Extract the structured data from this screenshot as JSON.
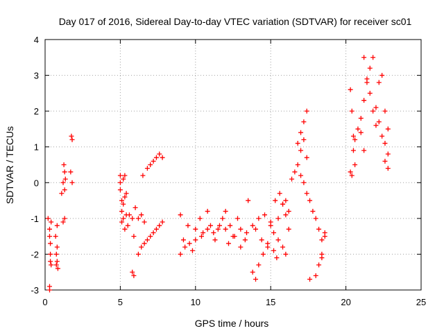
{
  "chart_data": {
    "type": "scatter",
    "title": "Day 017 of 2016, Sidereal Day-to-day VTEC variation (SDTVAR) for receiver sc01",
    "xlabel": "GPS time / hours",
    "ylabel": "SDTVAR / TECUs",
    "xlim": [
      0,
      25
    ],
    "ylim": [
      -3,
      4
    ],
    "x_ticks": [
      0,
      5,
      10,
      15,
      20,
      25
    ],
    "y_ticks": [
      -3,
      -2,
      -1,
      0,
      1,
      2,
      3,
      4
    ],
    "grid": true,
    "marker": "+",
    "color": "#ff0000",
    "series": [
      {
        "name": "SDTVAR",
        "x": [
          0.2,
          0.3,
          0.35,
          0.4,
          0.3,
          0.3,
          0.35,
          0.4,
          0.3,
          0.35,
          0.7,
          0.8,
          0.75,
          0.8,
          0.85,
          0.8,
          0.75,
          1.1,
          1.2,
          1.3,
          1.2,
          1.3,
          1.25,
          1.35,
          1.3,
          1.7,
          1.8,
          1.75,
          1.8,
          5.0,
          5.1,
          5.2,
          5.3,
          5.0,
          5.1,
          5.2,
          5.3,
          5.4,
          5.5,
          5.0,
          5.2,
          5.4,
          5.1,
          5.3,
          5.6,
          5.8,
          5.9,
          6.0,
          6.2,
          6.4,
          6.6,
          5.8,
          5.9,
          6.5,
          6.8,
          7.0,
          7.2,
          7.4,
          7.6,
          7.8,
          6.2,
          6.4,
          6.6,
          6.8,
          7.0,
          7.2,
          7.4,
          7.6,
          7.8,
          9.0,
          9.2,
          9.5,
          9.8,
          10.0,
          10.3,
          10.5,
          10.8,
          11.0,
          11.3,
          11.5,
          11.8,
          9.0,
          9.3,
          9.6,
          10.0,
          10.4,
          10.8,
          11.2,
          11.6,
          12.0,
          12.0,
          12.3,
          12.5,
          12.8,
          13.0,
          13.3,
          13.5,
          13.8,
          12.2,
          12.6,
          13.0,
          13.4,
          13.8,
          14.0,
          14.2,
          14.0,
          14.2,
          14.4,
          14.6,
          14.8,
          15.0,
          15.2,
          14.5,
          14.8,
          15.0,
          15.3,
          15.5,
          15.8,
          16.0,
          16.2,
          15.5,
          15.8,
          16.0,
          15.2,
          15.4,
          15.6,
          15.8,
          16.0,
          16.2,
          16.4,
          16.6,
          16.8,
          17.0,
          17.2,
          17.4,
          16.8,
          17.0,
          17.2,
          17.4,
          17.0,
          17.2,
          17.4,
          17.6,
          17.8,
          18.0,
          18.2,
          18.4,
          18.2,
          18.4,
          18.6,
          17.6,
          18.0,
          18.4,
          18.6,
          20.3,
          20.4,
          20.5,
          20.6,
          20.3,
          20.4,
          20.5,
          20.6,
          20.8,
          21.0,
          21.2,
          21.4,
          21.6,
          21.8,
          21.2,
          21.4,
          21.6,
          21.8,
          22.0,
          21.0,
          21.2,
          22.0,
          22.2,
          22.4,
          22.2,
          22.4,
          22.6,
          22.8,
          22.6,
          22.8,
          22.6,
          22.8
        ],
        "y": [
          -1.0,
          -1.5,
          -2.2,
          -2.3,
          -2.9,
          -3.0,
          -1.7,
          -1.1,
          -1.3,
          -2.0,
          -1.5,
          -2.2,
          -2.3,
          -1.8,
          -2.4,
          -1.2,
          -2.0,
          -0.3,
          0.0,
          0.3,
          -1.1,
          -1.0,
          0.5,
          0.1,
          -0.2,
          0.3,
          1.2,
          1.3,
          0.0,
          0.2,
          -0.5,
          -1.0,
          -1.3,
          0.0,
          -0.8,
          0.1,
          -0.4,
          -0.9,
          -1.2,
          -0.2,
          -0.6,
          -0.3,
          -1.1,
          0.2,
          -0.9,
          -1.0,
          -1.5,
          -0.7,
          -1.0,
          -0.9,
          -1.1,
          -2.5,
          -2.6,
          0.2,
          0.4,
          0.5,
          0.6,
          0.7,
          0.8,
          0.7,
          -2.0,
          -1.8,
          -1.7,
          -1.6,
          -1.5,
          -1.4,
          -1.3,
          -1.2,
          -1.1,
          -0.9,
          -1.6,
          -1.2,
          -1.9,
          -1.3,
          -1.0,
          -1.4,
          -0.8,
          -1.2,
          -1.6,
          -1.3,
          -1.0,
          -2.0,
          -1.8,
          -1.7,
          -1.6,
          -1.5,
          -1.3,
          -1.4,
          -1.2,
          -1.3,
          -0.8,
          -1.2,
          -1.5,
          -1.0,
          -1.3,
          -1.6,
          -0.5,
          -1.2,
          -1.7,
          -1.5,
          -1.8,
          -1.4,
          -2.5,
          -2.7,
          -2.3,
          -1.3,
          -1.0,
          -1.6,
          -0.9,
          -1.8,
          -1.2,
          -1.4,
          -2.0,
          -1.7,
          -1.1,
          -0.5,
          -1.0,
          -0.6,
          -0.9,
          -1.3,
          -1.6,
          -1.8,
          -2.0,
          -1.9,
          -2.1,
          -0.3,
          -0.6,
          -0.5,
          -0.8,
          0.1,
          0.3,
          1.1,
          1.4,
          1.7,
          2.0,
          0.5,
          0.9,
          1.2,
          0.7,
          0.2,
          0.0,
          -0.3,
          -0.5,
          -0.8,
          -1.0,
          -1.3,
          -1.6,
          -2.3,
          -2.0,
          -1.4,
          -2.7,
          -2.6,
          -2.1,
          -1.5,
          2.6,
          2.0,
          1.3,
          0.5,
          0.3,
          0.2,
          0.9,
          1.2,
          1.5,
          1.8,
          2.3,
          2.8,
          3.2,
          3.5,
          3.5,
          2.9,
          2.5,
          2.0,
          1.6,
          1.4,
          0.9,
          2.1,
          1.7,
          1.3,
          2.8,
          3.0,
          2.0,
          1.5,
          0.6,
          0.4,
          1.1,
          0.8
        ]
      }
    ]
  }
}
